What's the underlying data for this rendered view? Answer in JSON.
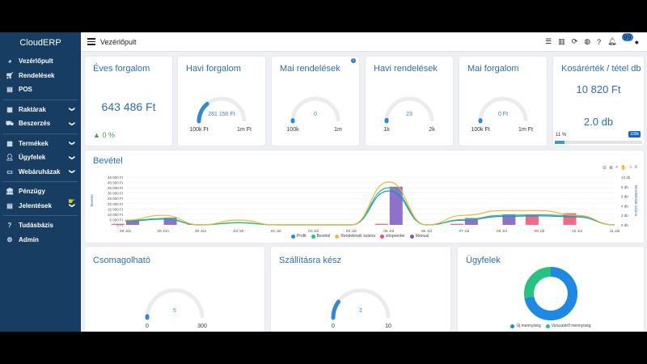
{
  "app": {
    "brand": "CloudERP",
    "page_title": "Vezérlőpult"
  },
  "sidebar": {
    "groups": [
      [
        {
          "label": "Vezérlőpult",
          "icon": "dashboard-icon",
          "chevron": false
        },
        {
          "label": "Rendelések",
          "icon": "cart-icon",
          "chevron": false
        },
        {
          "label": "POS",
          "icon": "pos-icon",
          "chevron": false
        }
      ],
      [
        {
          "label": "Raktárak",
          "icon": "warehouse-icon",
          "chevron": true
        },
        {
          "label": "Beszerzés",
          "icon": "truck-icon",
          "chevron": true
        }
      ],
      [
        {
          "label": "Termékek",
          "icon": "products-icon",
          "chevron": true
        },
        {
          "label": "Ügyfelek",
          "icon": "users-icon",
          "chevron": true
        },
        {
          "label": "Webáruházak",
          "icon": "store-icon",
          "chevron": true
        }
      ],
      [
        {
          "label": "Pénzügy",
          "icon": "bank-icon",
          "chevron": false
        },
        {
          "label": "Jelentések",
          "icon": "report-icon",
          "chevron": true
        }
      ],
      [
        {
          "label": "Tudásbázis",
          "icon": "help-icon",
          "chevron": false
        },
        {
          "label": "Admin",
          "icon": "gear-icon",
          "chevron": false
        }
      ]
    ]
  },
  "topbar": {
    "notification_count": "99"
  },
  "kpis": {
    "eves": {
      "title": "Éves forgalom",
      "value": "643 486 Ft",
      "change": "0 %"
    },
    "havi_forgalom": {
      "title": "Havi forgalom",
      "value": "281 150 Ft",
      "min": "100k Ft",
      "max": "1m Ft",
      "level": 0.28
    },
    "mai_rendelesek": {
      "title": "Mai rendelések",
      "value": "0",
      "min": "100k",
      "max": "1m",
      "level": 0.0
    },
    "havi_rendelesek": {
      "title": "Havi rendelések",
      "value": "23",
      "min": "1k",
      "max": "2k",
      "level": 0.02
    },
    "mai_forgalom": {
      "title": "Mai forgalom",
      "value": "0 Ft",
      "min": "100k Ft",
      "max": "1m Ft",
      "level": 0.0
    },
    "kosar": {
      "title": "Kosárérték / tétel db",
      "value": "10 820 Ft",
      "value2": "2.0 db",
      "progress_label": "11 %",
      "progress_max": "100k",
      "progress": 0.11
    }
  },
  "revenue_chart": {
    "title": "Bevétel",
    "y_left_label": "Bevétel",
    "y_right_label": "Rendelések száma",
    "y_left_ticks": [
      "45 000 Ft",
      "40 000 Ft",
      "35 000 Ft",
      "30 000 Ft",
      "25 000 Ft",
      "20 000 Ft",
      "15 000 Ft",
      "10 000 Ft",
      "5 000 Ft",
      "0 Ft"
    ],
    "y_right_ticks": [
      "10 db",
      "8 db",
      "6 db",
      "4 db",
      "2 db",
      "0 db"
    ],
    "legend": [
      {
        "name": "Profit",
        "color": "#1e88e5"
      },
      {
        "name": "Bevétel",
        "color": "#26c281"
      },
      {
        "name": "Rendelések száma",
        "color": "#f5b731"
      },
      {
        "name": "shoprenter",
        "color": "#f0506e"
      },
      {
        "name": "Manual",
        "color": "#7e57c2"
      }
    ]
  },
  "chart_data": {
    "type": "bar",
    "categories": [
      "28 Jún",
      "29 Jún",
      "30 Jún",
      "Júl '20",
      "02 Júl",
      "03 Júl",
      "04 Júl",
      "05 Júl",
      "06 Júl",
      "07 Júl",
      "08 Júl",
      "09 Júl",
      "10 Júl",
      "11 Júl"
    ],
    "ylim": [
      0,
      45000
    ],
    "y2lim": [
      0,
      10
    ],
    "series": [
      {
        "name": "shoprenter",
        "type": "bar",
        "values": [
          1000,
          0,
          500,
          0,
          0,
          0,
          0,
          1000,
          0,
          1000,
          0,
          10000,
          11000,
          0
        ]
      },
      {
        "name": "Manual",
        "type": "bar",
        "values": [
          4500,
          6800,
          0,
          0,
          0,
          0,
          0,
          36000,
          0,
          6500,
          10000,
          0,
          0,
          0
        ]
      },
      {
        "name": "Profit",
        "type": "line",
        "values": [
          3500,
          5500,
          0,
          2000,
          0,
          0,
          0,
          32000,
          0,
          4500,
          8000,
          8500,
          7500,
          0
        ]
      },
      {
        "name": "Bevétel",
        "type": "line",
        "values": [
          4000,
          6000,
          0,
          2200,
          0,
          0,
          0,
          35000,
          0,
          5000,
          9000,
          9500,
          8500,
          0
        ]
      },
      {
        "name": "Rendelések száma",
        "type": "line",
        "values": [
          1,
          2,
          0,
          1,
          0,
          0,
          0,
          9,
          0,
          2,
          3,
          3,
          2,
          0
        ]
      }
    ]
  },
  "bottom": {
    "csomagolhato": {
      "title": "Csomagolható",
      "value": "5",
      "min": "0",
      "max": "300",
      "level": 0.02
    },
    "szallitasra": {
      "title": "Szállításra kész",
      "value": "2",
      "min": "0",
      "max": "10",
      "level": 0.2
    },
    "ugyfelek": {
      "title": "Ügyfelek",
      "legend": [
        {
          "name": "Új mennyiség",
          "color": "#1e88e5"
        },
        {
          "name": "Visszatérő mennyiség",
          "color": "#26c281"
        }
      ],
      "new_share": 0.72
    }
  }
}
